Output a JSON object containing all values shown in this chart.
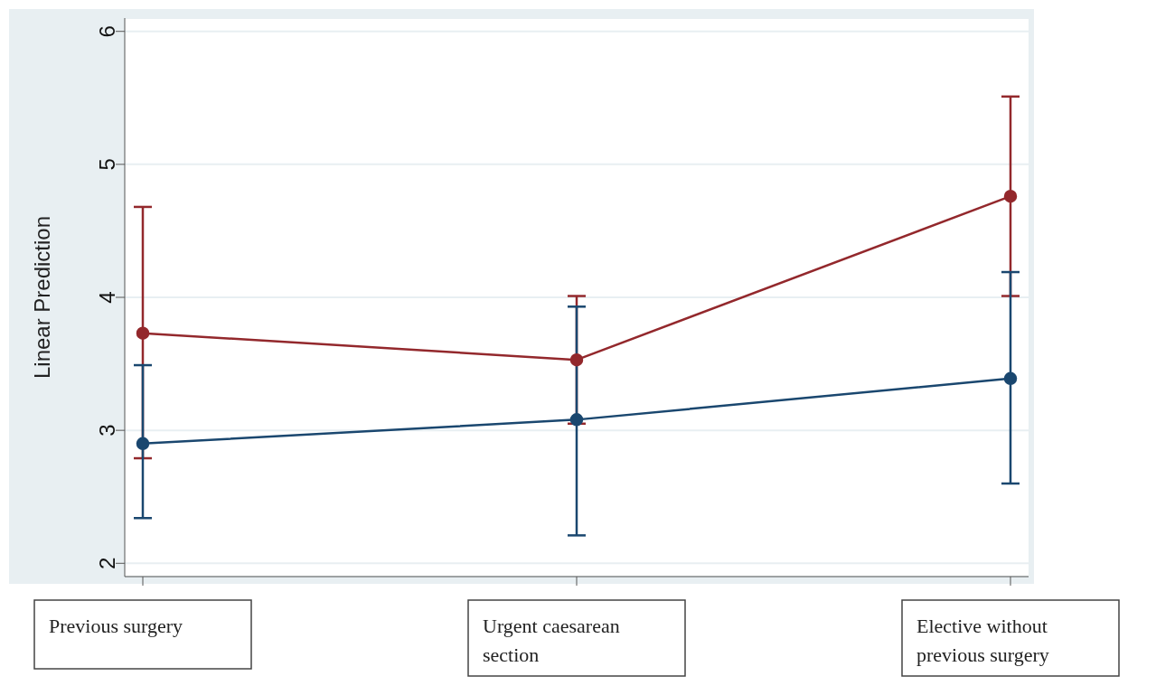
{
  "chart_data": {
    "type": "line",
    "ylabel": "Linear Prediction",
    "categories": [
      "Previous surgery",
      "Urgent caesarean section",
      "Elective without previous surgery"
    ],
    "series": [
      {
        "color": "#93282c",
        "values": [
          3.73,
          3.53,
          4.76
        ],
        "errors": [
          [
            2.79,
            4.68
          ],
          [
            3.05,
            4.01
          ],
          [
            4.01,
            5.51
          ]
        ]
      },
      {
        "color": "#1a476f",
        "values": [
          2.9,
          3.08,
          3.39
        ],
        "errors": [
          [
            2.34,
            3.49
          ],
          [
            2.21,
            3.93
          ],
          [
            2.6,
            4.19
          ]
        ]
      }
    ],
    "ylim": [
      1.9,
      6.1
    ],
    "yticks": [
      2,
      3,
      4,
      5,
      6
    ],
    "grid": "y",
    "legend": false,
    "marker": "circle",
    "line_style": "solid"
  }
}
